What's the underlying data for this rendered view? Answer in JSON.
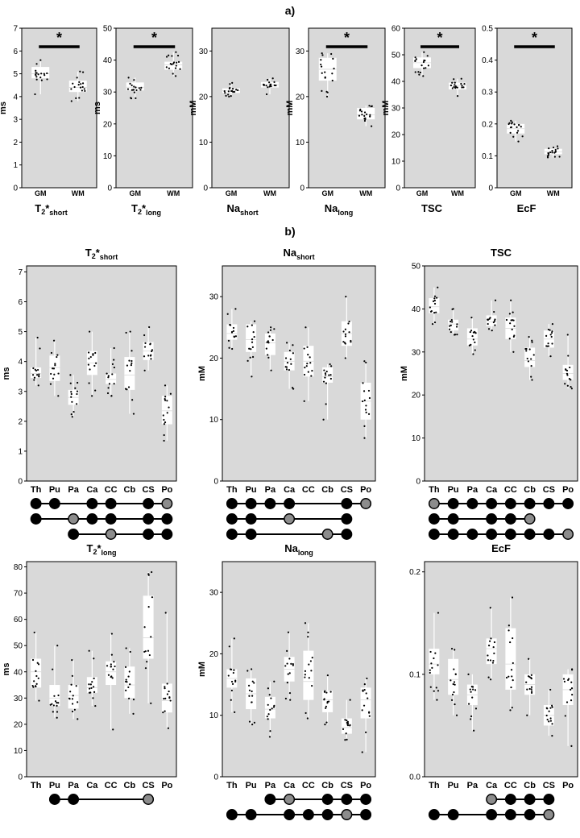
{
  "section_labels": {
    "a": "a)",
    "b": "b)"
  },
  "chart_data": [
    {
      "type": "box",
      "panel": "a",
      "title": "T2*short",
      "title_main": "T",
      "title_sub2": "2",
      "title_star": "*",
      "title_sub": "short",
      "ylabel": "ms",
      "ylim": [
        0,
        7
      ],
      "yticks": [
        "0",
        "1",
        "2",
        "3",
        "4",
        "5",
        "6",
        "7"
      ],
      "categories": [
        "GM",
        "WM"
      ],
      "boxes": [
        {
          "min": 4.1,
          "q1": 4.8,
          "median": 5.0,
          "q3": 5.3,
          "max": 5.6
        },
        {
          "min": 3.8,
          "q1": 4.2,
          "median": 4.4,
          "q3": 4.7,
          "max": 5.1
        }
      ],
      "significance": "*"
    },
    {
      "type": "box",
      "panel": "a",
      "title": "T2*long",
      "title_main": "T",
      "title_sub2": "2",
      "title_star": "*",
      "title_sub": "long",
      "ylabel": "ms",
      "ylim": [
        0,
        50
      ],
      "yticks": [
        "0",
        "10",
        "20",
        "30",
        "40",
        "50"
      ],
      "categories": [
        "GM",
        "WM"
      ],
      "boxes": [
        {
          "min": 28,
          "q1": 30.5,
          "median": 31.5,
          "q3": 33,
          "max": 34.5
        },
        {
          "min": 35,
          "q1": 37,
          "median": 38.5,
          "q3": 39.5,
          "max": 42.5
        }
      ],
      "significance": "*"
    },
    {
      "type": "box",
      "panel": "a",
      "title": "Nashort",
      "title_main": "Na",
      "title_sub": "short",
      "ylabel": "mM",
      "ylim": [
        0,
        35
      ],
      "yticks": [
        "0",
        "10",
        "20",
        "30"
      ],
      "categories": [
        "GM",
        "WM"
      ],
      "boxes": [
        {
          "min": 20,
          "q1": 20.8,
          "median": 21.3,
          "q3": 21.8,
          "max": 23
        },
        {
          "min": 20.5,
          "q1": 22,
          "median": 22.6,
          "q3": 23.2,
          "max": 24
        }
      ],
      "significance": ""
    },
    {
      "type": "box",
      "panel": "a",
      "title": "Nalong",
      "title_main": "Na",
      "title_sub": "long",
      "ylabel": "mM",
      "ylim": [
        0,
        35
      ],
      "yticks": [
        "0",
        "10",
        "20",
        "30"
      ],
      "categories": [
        "GM",
        "WM"
      ],
      "boxes": [
        {
          "min": 20,
          "q1": 23.5,
          "median": 26,
          "q3": 28.5,
          "max": 29.5
        },
        {
          "min": 13.5,
          "q1": 15,
          "median": 16,
          "q3": 17.5,
          "max": 18
        }
      ],
      "significance": "*"
    },
    {
      "type": "box",
      "panel": "a",
      "title": "TSC",
      "title_main": "TSC",
      "title_sub": "",
      "ylabel": "mM",
      "ylim": [
        0,
        60
      ],
      "yticks": [
        "0",
        "10",
        "20",
        "30",
        "40",
        "50",
        "60"
      ],
      "categories": [
        "GM",
        "WM"
      ],
      "boxes": [
        {
          "min": 42,
          "q1": 45,
          "median": 47,
          "q3": 49,
          "max": 51
        },
        {
          "min": 34.5,
          "q1": 37,
          "median": 38.5,
          "q3": 39.5,
          "max": 41
        }
      ],
      "significance": "*"
    },
    {
      "type": "box",
      "panel": "a",
      "title": "EcF",
      "title_main": "EcF",
      "title_sub": "",
      "ylabel": "",
      "ylim": [
        0,
        0.5
      ],
      "yticks": [
        "0",
        "0.1",
        "0.2",
        "0.3",
        "0.4",
        "0.5"
      ],
      "categories": [
        "GM",
        "WM"
      ],
      "boxes": [
        {
          "min": 0.145,
          "q1": 0.17,
          "median": 0.185,
          "q3": 0.2,
          "max": 0.21
        },
        {
          "min": 0.095,
          "q1": 0.105,
          "median": 0.113,
          "q3": 0.122,
          "max": 0.13
        }
      ],
      "significance": "*"
    },
    {
      "type": "box",
      "panel": "b",
      "title": "T2*short",
      "title_main": "T",
      "title_sub2": "2",
      "title_star": "*",
      "title_sub": "short",
      "ylabel": "ms",
      "ylim": [
        0,
        7.2
      ],
      "yticks": [
        "0",
        "1",
        "2",
        "3",
        "4",
        "5",
        "6",
        "7"
      ],
      "categories": [
        "Th",
        "Pu",
        "Pa",
        "Ca",
        "CC",
        "Cb",
        "CS",
        "Po"
      ],
      "boxes": [
        {
          "min": 3.2,
          "q1": 3.45,
          "median": 3.6,
          "q3": 3.8,
          "max": 4.8
        },
        {
          "min": 2.85,
          "q1": 3.35,
          "median": 3.8,
          "q3": 4.2,
          "max": 4.7
        },
        {
          "min": 2.15,
          "q1": 2.55,
          "median": 2.8,
          "q3": 3.05,
          "max": 3.55
        },
        {
          "min": 2.85,
          "q1": 3.55,
          "median": 3.95,
          "q3": 4.35,
          "max": 5.0
        },
        {
          "min": 2.85,
          "q1": 3.25,
          "median": 3.4,
          "q3": 3.6,
          "max": 4.45
        },
        {
          "min": 2.25,
          "q1": 3.05,
          "median": 3.55,
          "q3": 4.15,
          "max": 5.0
        },
        {
          "min": 3.7,
          "q1": 4.05,
          "median": 4.35,
          "q3": 4.65,
          "max": 5.15
        },
        {
          "min": 1.35,
          "q1": 1.9,
          "median": 2.35,
          "q3": 2.85,
          "max": 3.2
        }
      ],
      "significance_rows": [
        {
          "from": 0,
          "to": 7,
          "dots": [
            0,
            1,
            3,
            4,
            6,
            7
          ],
          "grey": [
            7
          ]
        },
        {
          "from": 0,
          "to": 7,
          "dots": [
            0,
            2,
            3,
            4,
            6,
            7
          ],
          "grey": [
            2
          ]
        },
        {
          "from": 2,
          "to": 7,
          "dots": [
            2,
            4,
            6,
            7
          ],
          "grey": [
            4
          ]
        }
      ]
    },
    {
      "type": "box",
      "panel": "b",
      "title": "Nashort",
      "title_main": "Na",
      "title_sub": "short",
      "ylabel": "mM",
      "ylim": [
        0,
        35
      ],
      "yticks": [
        "0",
        "10",
        "20",
        "30"
      ],
      "categories": [
        "Th",
        "Pu",
        "Pa",
        "Ca",
        "CC",
        "Cb",
        "CS",
        "Po"
      ],
      "boxes": [
        {
          "min": 21.5,
          "q1": 23,
          "median": 24,
          "q3": 25.5,
          "max": 28
        },
        {
          "min": 17,
          "q1": 21,
          "median": 23,
          "q3": 25.5,
          "max": 26
        },
        {
          "min": 18,
          "q1": 20.5,
          "median": 22.5,
          "q3": 24,
          "max": 25
        },
        {
          "min": 15,
          "q1": 18,
          "median": 19.5,
          "q3": 21,
          "max": 22.5
        },
        {
          "min": 13,
          "q1": 17,
          "median": 19.5,
          "q3": 22,
          "max": 25
        },
        {
          "min": 10,
          "q1": 16,
          "median": 17,
          "q3": 18.5,
          "max": 19
        },
        {
          "min": 20,
          "q1": 22,
          "median": 24,
          "q3": 26,
          "max": 30
        },
        {
          "min": 7,
          "q1": 10,
          "median": 13,
          "q3": 16,
          "max": 19.5
        }
      ],
      "significance_rows": [
        {
          "from": 0,
          "to": 7,
          "dots": [
            0,
            1,
            2,
            3,
            6,
            7
          ],
          "grey": [
            7
          ]
        },
        {
          "from": 0,
          "to": 6,
          "dots": [
            0,
            1,
            3,
            6
          ],
          "grey": [
            3
          ]
        },
        {
          "from": 0,
          "to": 6,
          "dots": [
            0,
            1,
            5,
            6
          ],
          "grey": [
            5
          ]
        }
      ]
    },
    {
      "type": "box",
      "panel": "b",
      "title": "TSC",
      "title_main": "TSC",
      "title_sub": "",
      "ylabel": "mM",
      "ylim": [
        0,
        50
      ],
      "yticks": [
        "0",
        "10",
        "20",
        "30",
        "40",
        "50"
      ],
      "categories": [
        "Th",
        "Pu",
        "Pa",
        "Ca",
        "CC",
        "Cb",
        "CS",
        "Po"
      ],
      "boxes": [
        {
          "min": 36.5,
          "q1": 39,
          "median": 40.5,
          "q3": 42.5,
          "max": 45
        },
        {
          "min": 34,
          "q1": 35,
          "median": 36.5,
          "q3": 37.5,
          "max": 40
        },
        {
          "min": 29.5,
          "q1": 31.5,
          "median": 33,
          "q3": 35.5,
          "max": 38
        },
        {
          "min": 35,
          "q1": 36,
          "median": 37,
          "q3": 38.5,
          "max": 42
        },
        {
          "min": 30,
          "q1": 33,
          "median": 35.5,
          "q3": 38,
          "max": 42
        },
        {
          "min": 23.5,
          "q1": 26.5,
          "median": 28,
          "q3": 31,
          "max": 33.5
        },
        {
          "min": 29,
          "q1": 31,
          "median": 33,
          "q3": 35,
          "max": 36.5
        },
        {
          "min": 21.5,
          "q1": 23.5,
          "median": 25,
          "q3": 27,
          "max": 34
        }
      ],
      "significance_rows": [
        {
          "from": 0,
          "to": 7,
          "dots": [
            0,
            1,
            2,
            3,
            4,
            5,
            6,
            7
          ],
          "grey": [
            0
          ]
        },
        {
          "from": 0,
          "to": 5,
          "dots": [
            0,
            1,
            3,
            4,
            5
          ],
          "grey": [
            5
          ]
        },
        {
          "from": 0,
          "to": 7,
          "dots": [
            0,
            1,
            2,
            3,
            4,
            5,
            6,
            7
          ],
          "grey": [
            7
          ]
        }
      ]
    },
    {
      "type": "box",
      "panel": "b",
      "title": "T2*long",
      "title_main": "T",
      "title_sub2": "2",
      "title_star": "*",
      "title_sub": "long",
      "ylabel": "ms",
      "ylim": [
        0,
        82
      ],
      "yticks": [
        "0",
        "10",
        "20",
        "30",
        "40",
        "50",
        "60",
        "70",
        "80"
      ],
      "categories": [
        "Th",
        "Pu",
        "Pa",
        "Ca",
        "CC",
        "Cb",
        "CS",
        "Po"
      ],
      "boxes": [
        {
          "min": 29,
          "q1": 34,
          "median": 40,
          "q3": 45,
          "max": 55
        },
        {
          "min": 22.5,
          "q1": 27,
          "median": 30,
          "q3": 35,
          "max": 50
        },
        {
          "min": 22,
          "q1": 26,
          "median": 31,
          "q3": 35,
          "max": 44.5
        },
        {
          "min": 27,
          "q1": 32,
          "median": 34,
          "q3": 38,
          "max": 48
        },
        {
          "min": 18,
          "q1": 35,
          "median": 40,
          "q3": 44,
          "max": 54.5
        },
        {
          "min": 24,
          "q1": 30,
          "median": 35,
          "q3": 42,
          "max": 49
        },
        {
          "min": 28,
          "q1": 45,
          "median": 53,
          "q3": 69,
          "max": 78
        },
        {
          "min": 18.5,
          "q1": 24.5,
          "median": 29,
          "q3": 35.5,
          "max": 62.5
        }
      ],
      "significance_rows": [
        {
          "from": 1,
          "to": 6,
          "dots": [
            1,
            2,
            6
          ],
          "grey": [
            6
          ]
        }
      ]
    },
    {
      "type": "box",
      "panel": "b",
      "title": "Nalong",
      "title_main": "Na",
      "title_sub": "long",
      "ylabel": "mM",
      "ylim": [
        0,
        35
      ],
      "yticks": [
        "0",
        "10",
        "20",
        "30"
      ],
      "categories": [
        "Th",
        "Pu",
        "Pa",
        "Ca",
        "CC",
        "Cb",
        "CS",
        "Po"
      ],
      "boxes": [
        {
          "min": 10.5,
          "q1": 14.5,
          "median": 16,
          "q3": 17.5,
          "max": 22.5
        },
        {
          "min": 8.5,
          "q1": 11,
          "median": 13.5,
          "q3": 16,
          "max": 17.5
        },
        {
          "min": 6.5,
          "q1": 9.5,
          "median": 11,
          "q3": 13,
          "max": 15.5
        },
        {
          "min": 12.5,
          "q1": 15.5,
          "median": 17.5,
          "q3": 19.5,
          "max": 23.5
        },
        {
          "min": 9.5,
          "q1": 12.5,
          "median": 15.5,
          "q3": 20.5,
          "max": 25
        },
        {
          "min": 8.5,
          "q1": 10.5,
          "median": 12.5,
          "q3": 14,
          "max": 16.5
        },
        {
          "min": 6,
          "q1": 7,
          "median": 8,
          "q3": 9.5,
          "max": 12.5
        },
        {
          "min": 4,
          "q1": 9.5,
          "median": 12.5,
          "q3": 14.5,
          "max": 16
        }
      ],
      "significance_rows": [
        {
          "from": 2,
          "to": 7,
          "dots": [
            2,
            3,
            5,
            6,
            7
          ],
          "grey": [
            3
          ]
        },
        {
          "from": 0,
          "to": 7,
          "dots": [
            0,
            1,
            3,
            4,
            5,
            6,
            7
          ],
          "grey": [
            6
          ]
        }
      ]
    },
    {
      "type": "box",
      "panel": "b",
      "title": "EcF",
      "title_main": "EcF",
      "title_sub": "",
      "ylabel": "",
      "ylim": [
        0,
        0.21
      ],
      "yticks": [
        "0.0",
        "0.1",
        "0.2"
      ],
      "categories": [
        "Th",
        "Pu",
        "Pa",
        "Ca",
        "CC",
        "Cb",
        "CS",
        "Po"
      ],
      "boxes": [
        {
          "min": 0.075,
          "q1": 0.1,
          "median": 0.11,
          "q3": 0.125,
          "max": 0.16
        },
        {
          "min": 0.06,
          "q1": 0.08,
          "median": 0.095,
          "q3": 0.115,
          "max": 0.125
        },
        {
          "min": 0.045,
          "q1": 0.07,
          "median": 0.08,
          "q3": 0.09,
          "max": 0.1
        },
        {
          "min": 0.095,
          "q1": 0.11,
          "median": 0.125,
          "q3": 0.135,
          "max": 0.165
        },
        {
          "min": 0.065,
          "q1": 0.085,
          "median": 0.11,
          "q3": 0.145,
          "max": 0.175
        },
        {
          "min": 0.06,
          "q1": 0.08,
          "median": 0.09,
          "q3": 0.1,
          "max": 0.115
        },
        {
          "min": 0.04,
          "q1": 0.05,
          "median": 0.06,
          "q3": 0.07,
          "max": 0.085
        },
        {
          "min": 0.03,
          "q1": 0.07,
          "median": 0.085,
          "q3": 0.1,
          "max": 0.105
        }
      ],
      "significance_rows": [
        {
          "from": 3,
          "to": 6,
          "dots": [
            3,
            4,
            5,
            6
          ],
          "grey": [
            3
          ]
        },
        {
          "from": 0,
          "to": 6,
          "dots": [
            0,
            1,
            3,
            4,
            5,
            6
          ],
          "grey": [
            6
          ]
        }
      ]
    }
  ]
}
